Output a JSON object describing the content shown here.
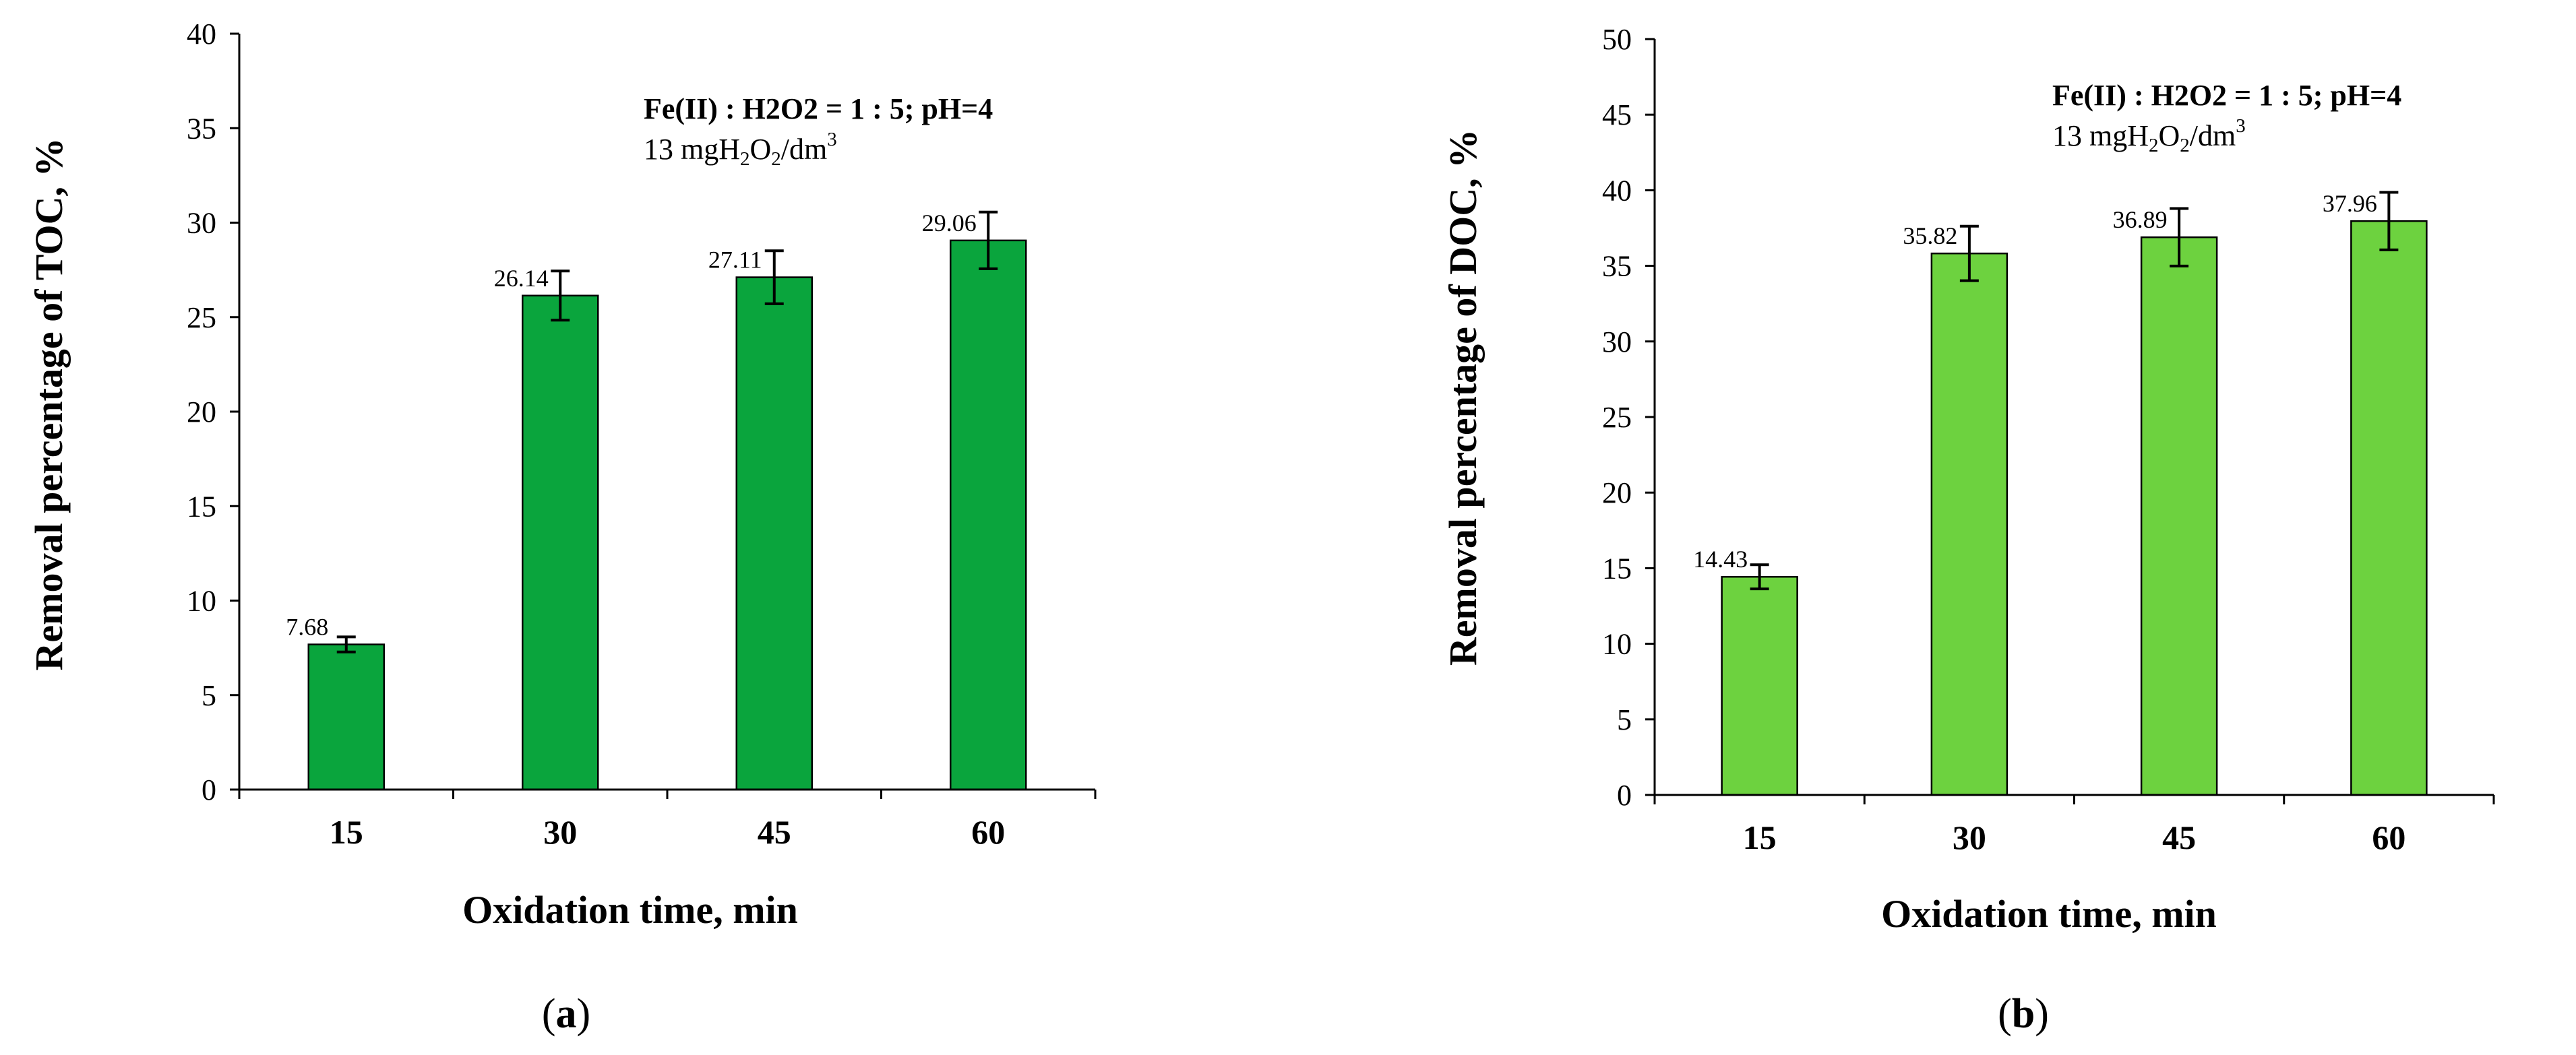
{
  "chart_data": [
    {
      "type": "bar",
      "panel_label": "(a)",
      "panel_label_letter": "a",
      "categories": [
        "15",
        "30",
        "45",
        "60"
      ],
      "values": [
        7.68,
        26.14,
        27.11,
        29.06
      ],
      "data_labels": [
        "7.68",
        "26.14",
        "27.11",
        "29.06"
      ],
      "error_bars": [
        0.4,
        1.3,
        1.4,
        1.5
      ],
      "ylim": [
        0,
        40
      ],
      "yticks": [
        "0",
        "5",
        "10",
        "15",
        "20",
        "25",
        "30",
        "35",
        "40"
      ],
      "xlabel": "Oxidation time, min",
      "ylabel": "Removal percentage of  TOC,  %",
      "annotation_line1": "Fe(II) : H2O2 = 1 : 5; pH=4",
      "annotation_line2": {
        "a": "13 mgH",
        "b": "2",
        "c": "O",
        "d": "2",
        "e": "/dm",
        "f": "3"
      },
      "bar_color": "#0aa53d",
      "grid": false
    },
    {
      "type": "bar",
      "panel_label": "(b)",
      "panel_label_letter": "b",
      "categories": [
        "15",
        "30",
        "45",
        "60"
      ],
      "values": [
        14.43,
        35.82,
        36.89,
        37.96
      ],
      "data_labels": [
        "14.43",
        "35.82",
        "36.89",
        "37.96"
      ],
      "error_bars": [
        0.8,
        1.8,
        1.9,
        1.9
      ],
      "ylim": [
        0,
        50
      ],
      "yticks": [
        "0",
        "5",
        "10",
        "15",
        "20",
        "25",
        "30",
        "35",
        "40",
        "45",
        "50"
      ],
      "xlabel": "Oxidation time, min",
      "ylabel": "Removal percentage of  DOC,  %",
      "annotation_line1": "Fe(II) : H2O2 = 1 : 5; pH=4",
      "annotation_line2": {
        "a": "13 mgH",
        "b": "2",
        "c": "O",
        "d": "2",
        "e": "/dm",
        "f": "3"
      },
      "bar_color": "#6dd23f",
      "grid": false
    }
  ]
}
